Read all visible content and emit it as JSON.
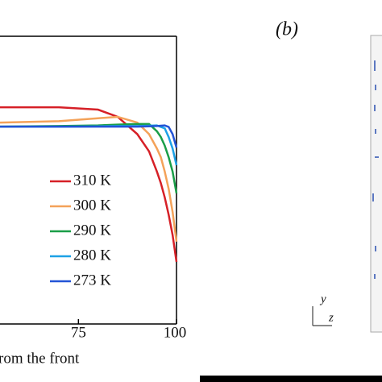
{
  "chart_data": {
    "type": "line",
    "x": [
      55,
      70,
      80,
      85,
      90,
      93,
      95,
      96,
      97,
      98,
      99,
      100
    ],
    "xlim": [
      55,
      100
    ],
    "xticks": [
      75,
      100
    ],
    "ylim": [
      0,
      1
    ],
    "xlabel": "rom the front",
    "panel_label": "(b)",
    "axis_y": "y",
    "axis_z": "z",
    "series": [
      {
        "name": "310 K",
        "color": "#d62027",
        "values": [
          0.753,
          0.753,
          0.745,
          0.72,
          0.66,
          0.6,
          0.53,
          0.49,
          0.44,
          0.38,
          0.31,
          0.216
        ]
      },
      {
        "name": "300 K",
        "color": "#f4a259",
        "values": [
          0.7,
          0.705,
          0.715,
          0.72,
          0.7,
          0.66,
          0.61,
          0.58,
          0.53,
          0.47,
          0.39,
          0.286
        ]
      },
      {
        "name": "290 K",
        "color": "#1a9e48",
        "values": [
          0.686,
          0.688,
          0.69,
          0.693,
          0.695,
          0.695,
          0.67,
          0.65,
          0.62,
          0.58,
          0.53,
          0.454
        ]
      },
      {
        "name": "280 K",
        "color": "#1da1e6",
        "values": [
          0.686,
          0.686,
          0.687,
          0.688,
          0.688,
          0.689,
          0.69,
          0.685,
          0.68,
          0.65,
          0.61,
          0.552
        ]
      },
      {
        "name": "273 K",
        "color": "#2354d6",
        "values": [
          0.686,
          0.686,
          0.686,
          0.686,
          0.686,
          0.687,
          0.688,
          0.689,
          0.69,
          0.685,
          0.66,
          0.613
        ]
      }
    ]
  }
}
